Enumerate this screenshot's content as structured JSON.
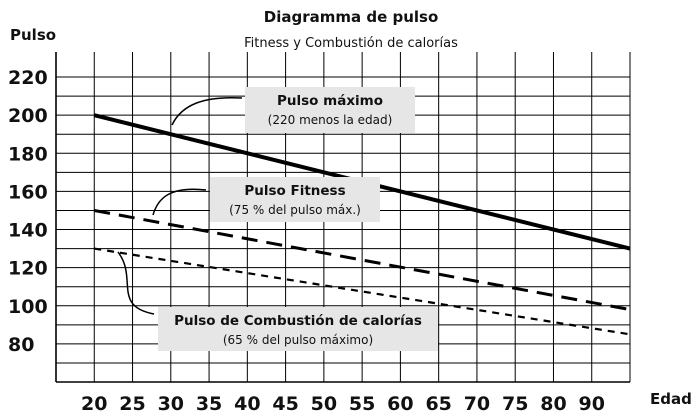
{
  "chart_data": {
    "type": "line",
    "title": "Diagramma de pulso",
    "subtitle": "Fitness  y  Combustión de calorías",
    "xlabel": "Edad",
    "ylabel": "Pulso",
    "x_ticks": [
      20,
      25,
      30,
      35,
      40,
      45,
      50,
      55,
      60,
      65,
      70,
      75,
      80,
      90
    ],
    "y_ticks": [
      80,
      100,
      120,
      140,
      160,
      180,
      200,
      220
    ],
    "xlim": [
      15,
      90
    ],
    "ylim": [
      60,
      230
    ],
    "grid": true,
    "series": [
      {
        "name": "Pulso máximo",
        "note": "(220 menos la edad)",
        "style": "solid",
        "x": [
          20,
          90
        ],
        "y": [
          200,
          130
        ]
      },
      {
        "name": "Pulso Fitness",
        "note": "(75 % del pulso máx.)",
        "style": "dashed",
        "x": [
          20,
          90
        ],
        "y": [
          150,
          98
        ]
      },
      {
        "name": "Pulso de Combustión de calorías",
        "note": "(65 % del pulso máximo)",
        "style": "dotted",
        "x": [
          20,
          90
        ],
        "y": [
          130,
          85
        ]
      }
    ]
  }
}
